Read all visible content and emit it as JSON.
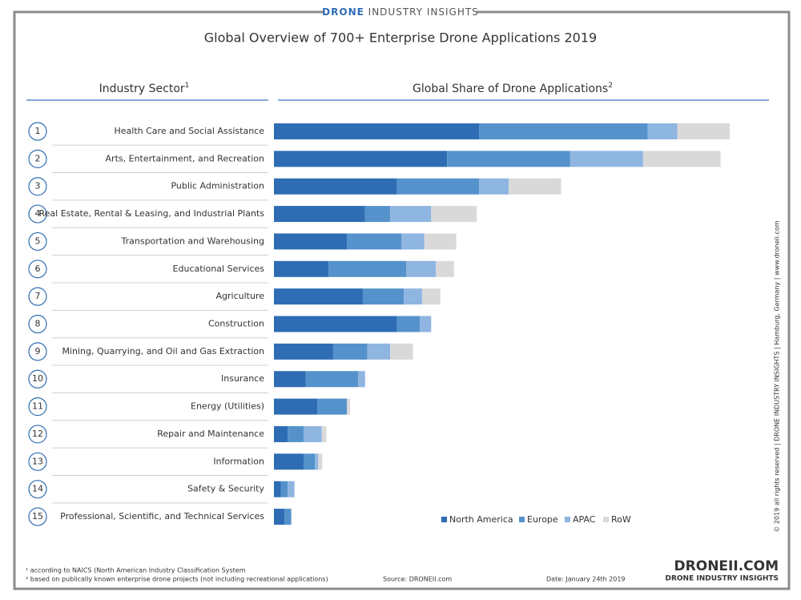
{
  "header": {
    "brand_bold": "DRONE",
    "brand_rest": "INDUSTRY INSIGHTS"
  },
  "chart_data": {
    "type": "stacked-bar-horizontal",
    "title": "Global Overview of 700+ Enterprise Drone Applications 2019",
    "left_header": {
      "text": "Industry Sector",
      "sup": "1"
    },
    "right_header": {
      "text": "Global Share of Drone Applications",
      "sup": "2"
    },
    "ranks": [
      1,
      2,
      3,
      4,
      5,
      6,
      7,
      8,
      9,
      10,
      11,
      12,
      13,
      14,
      15
    ],
    "categories": [
      "Health Care and Social Assistance",
      "Arts, Entertainment, and Recreation",
      "Public Administration",
      "Real Estate, Rental & Leasing, and Industrial Plants",
      "Transportation and Warehousing",
      "Educational Services",
      "Agriculture",
      "Construction",
      "Mining, Quarrying, and Oil and Gas Extraction",
      "Insurance",
      "Energy (Utilities)",
      "Repair and Maintenance",
      "Information",
      "Safety & Security",
      "Professional, Scientific, and Technical Services"
    ],
    "series": [
      {
        "name": "North America",
        "color": "#2e6db4",
        "values": [
          45,
          38,
          27,
          20,
          16,
          12,
          19.5,
          27,
          13,
          7,
          9.5,
          3,
          6.5,
          1.5,
          2.3
        ]
      },
      {
        "name": "Europe",
        "color": "#5592cb",
        "values": [
          37,
          27,
          18,
          5.5,
          12,
          17,
          9,
          5,
          7.5,
          11.5,
          6.5,
          3.5,
          2.5,
          1.5,
          1.5
        ]
      },
      {
        "name": "APAC",
        "color": "#8fb5e1",
        "values": [
          6.5,
          16,
          6.5,
          9,
          5,
          6.5,
          4,
          2.5,
          5,
          1.5,
          0,
          4,
          0.7,
          1.5,
          0
        ]
      },
      {
        "name": "RoW",
        "color": "#d9d9d9",
        "values": [
          11.5,
          17,
          11.5,
          10,
          7,
          4,
          4,
          0,
          5,
          0,
          0.7,
          1,
          0.9,
          0,
          0
        ]
      }
    ],
    "legend": "bottom-right"
  },
  "footer": {
    "note1": "¹ according to NAICS (North American Industry Classification System",
    "note2": "² based on publically known enterprise drone projects (not including recreational applications)",
    "source": "Source: DRONEII.com",
    "date": "Date: January 24th 2019",
    "logo": "DRONEII.COM",
    "logo_sub": "DRONE INDUSTRY INSIGHTS",
    "side": "© 2019 all rights reserved | DRONE INDUSTRY INSIGHTS | Hamburg, Germany | www.droneii.com"
  }
}
